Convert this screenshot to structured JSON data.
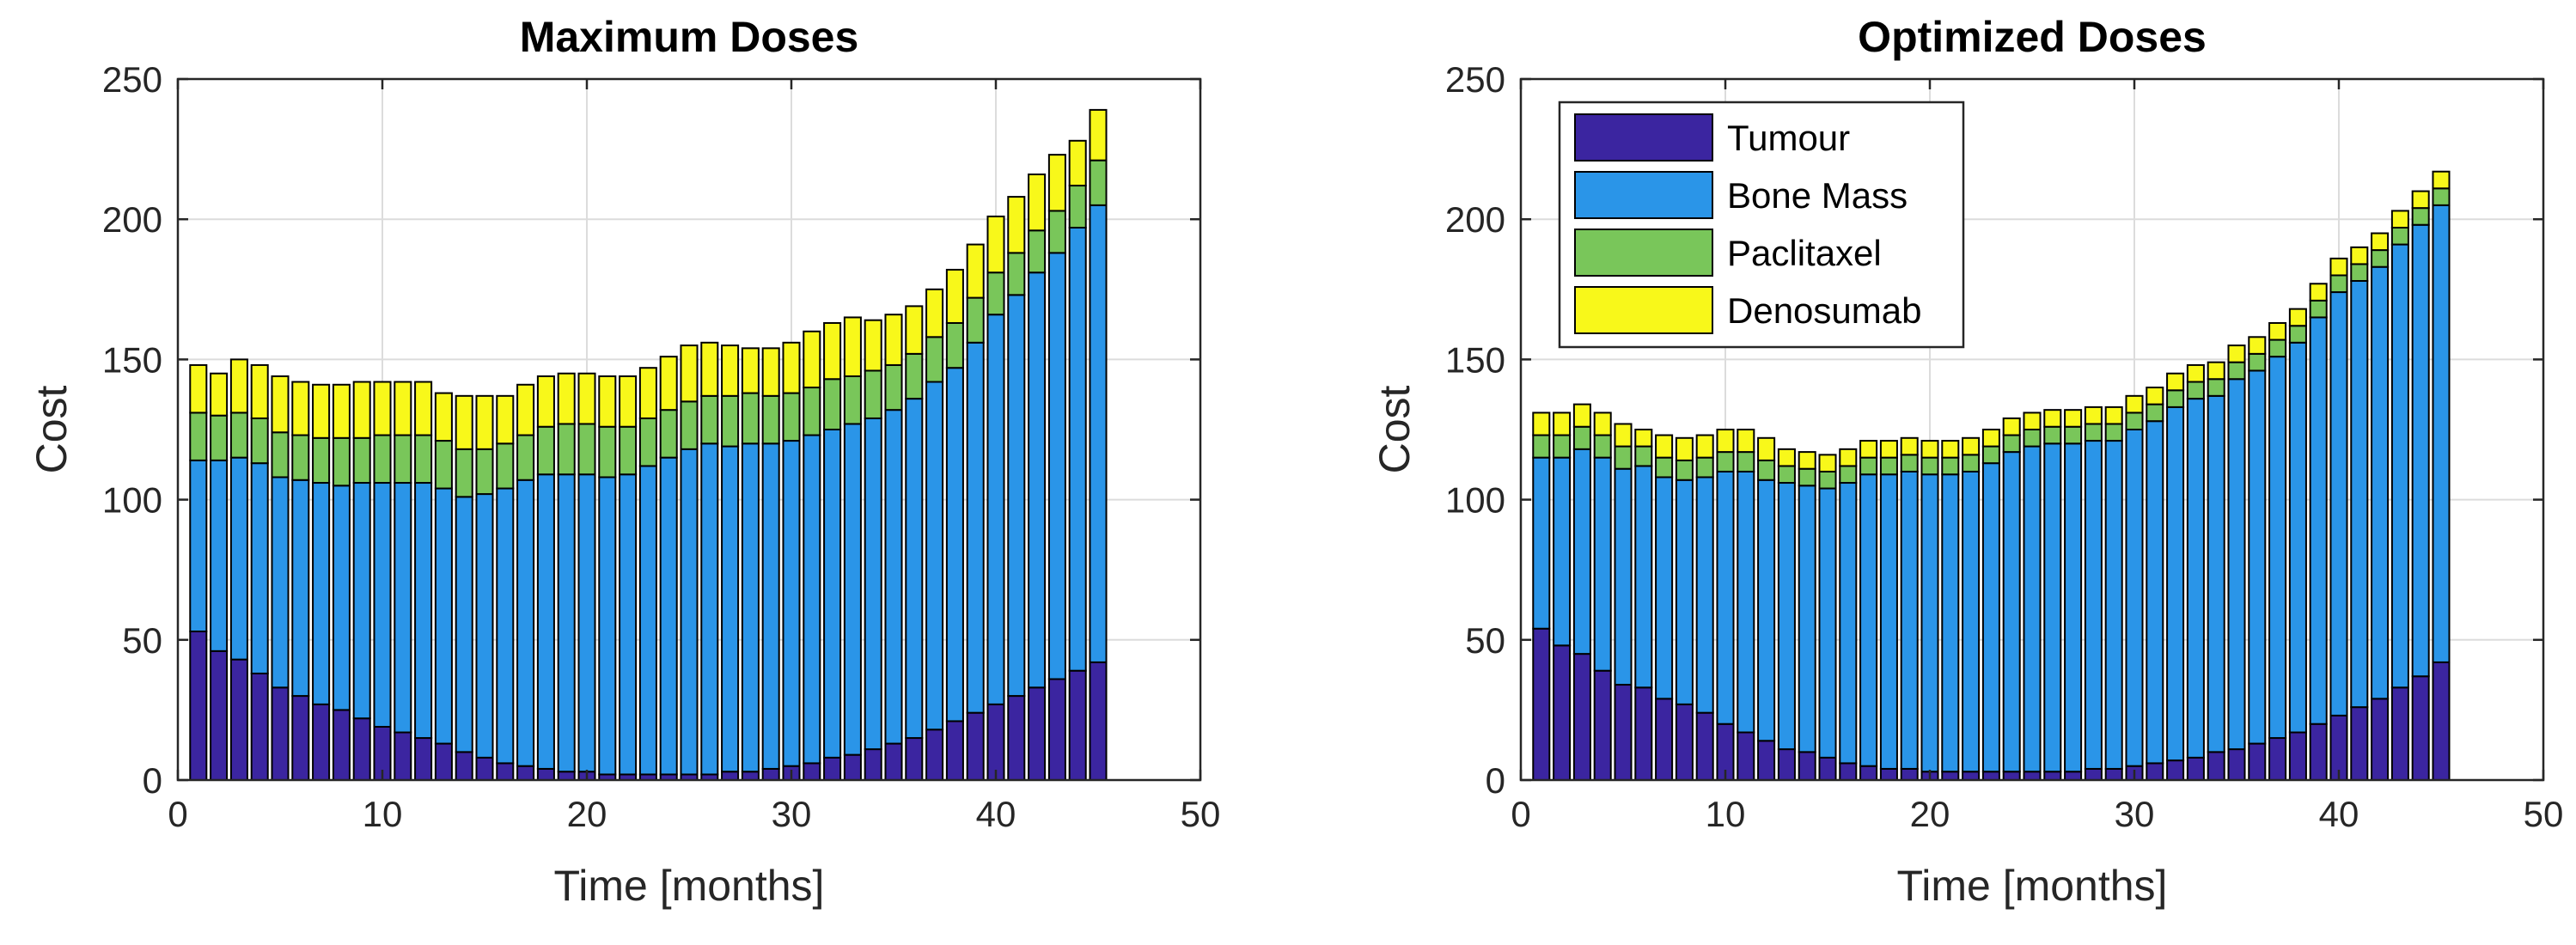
{
  "chart_data": [
    {
      "type": "bar",
      "stacked": true,
      "title": "Maximum Doses",
      "xlabel": "Time [months]",
      "ylabel": "Cost",
      "xlim": [
        0,
        50
      ],
      "ylim": [
        0,
        250
      ],
      "xticks": [
        0,
        10,
        20,
        30,
        40,
        50
      ],
      "yticks": [
        0,
        50,
        100,
        150,
        200,
        250
      ],
      "grid": true,
      "x": [
        1,
        2,
        3,
        4,
        5,
        6,
        7,
        8,
        9,
        10,
        11,
        12,
        13,
        14,
        15,
        16,
        17,
        18,
        19,
        20,
        21,
        22,
        23,
        24,
        25,
        26,
        27,
        28,
        29,
        30,
        31,
        32,
        33,
        34,
        35,
        36,
        37,
        38,
        39,
        40,
        41,
        42,
        43,
        44,
        45
      ],
      "series": [
        {
          "name": "Tumour",
          "color": "#3b25a0",
          "values": [
            53,
            46,
            43,
            38,
            33,
            30,
            27,
            25,
            22,
            19,
            17,
            15,
            13,
            10,
            8,
            6,
            5,
            4,
            3,
            3,
            2,
            2,
            2,
            2,
            2,
            2,
            3,
            3,
            4,
            5,
            6,
            8,
            9,
            11,
            13,
            15,
            18,
            21,
            24,
            27,
            30,
            33,
            36,
            39,
            42
          ]
        },
        {
          "name": "Bone Mass",
          "color": "#2a95e8",
          "values": [
            61,
            68,
            72,
            75,
            75,
            77,
            79,
            80,
            84,
            87,
            89,
            91,
            91,
            91,
            94,
            98,
            102,
            105,
            106,
            106,
            106,
            107,
            110,
            113,
            116,
            118,
            116,
            117,
            116,
            116,
            117,
            117,
            118,
            118,
            119,
            121,
            124,
            126,
            132,
            139,
            143,
            148,
            152,
            158,
            163
          ]
        },
        {
          "name": "Paclitaxel",
          "color": "#79c65a",
          "values": [
            17,
            16,
            16,
            16,
            16,
            16,
            16,
            17,
            16,
            17,
            17,
            17,
            17,
            17,
            16,
            16,
            16,
            17,
            18,
            18,
            18,
            17,
            17,
            17,
            17,
            17,
            18,
            18,
            17,
            17,
            17,
            18,
            17,
            17,
            16,
            16,
            16,
            16,
            16,
            15,
            15,
            15,
            15,
            15,
            16
          ]
        },
        {
          "name": "Denosumab",
          "color": "#f8f81a",
          "values": [
            17,
            15,
            19,
            19,
            20,
            19,
            19,
            19,
            20,
            19,
            19,
            19,
            17,
            19,
            19,
            17,
            18,
            18,
            18,
            18,
            18,
            18,
            18,
            19,
            20,
            19,
            18,
            16,
            17,
            18,
            20,
            20,
            21,
            18,
            18,
            17,
            17,
            19,
            19,
            20,
            20,
            20,
            20,
            16,
            18
          ]
        }
      ]
    },
    {
      "type": "bar",
      "stacked": true,
      "title": "Optimized Doses",
      "xlabel": "Time [months]",
      "ylabel": "Cost",
      "xlim": [
        0,
        50
      ],
      "ylim": [
        0,
        250
      ],
      "xticks": [
        0,
        10,
        20,
        30,
        40,
        50
      ],
      "yticks": [
        0,
        50,
        100,
        150,
        200,
        250
      ],
      "grid": true,
      "legend": {
        "position": "top-left",
        "entries": [
          "Tumour",
          "Bone Mass",
          "Paclitaxel",
          "Denosumab"
        ]
      },
      "x": [
        1,
        2,
        3,
        4,
        5,
        6,
        7,
        8,
        9,
        10,
        11,
        12,
        13,
        14,
        15,
        16,
        17,
        18,
        19,
        20,
        21,
        22,
        23,
        24,
        25,
        26,
        27,
        28,
        29,
        30,
        31,
        32,
        33,
        34,
        35,
        36,
        37,
        38,
        39,
        40,
        41,
        42,
        43,
        44,
        45
      ],
      "series": [
        {
          "name": "Tumour",
          "color": "#3b25a0",
          "values": [
            54,
            48,
            45,
            39,
            34,
            33,
            29,
            27,
            24,
            20,
            17,
            14,
            11,
            10,
            8,
            6,
            5,
            4,
            4,
            3,
            3,
            3,
            3,
            3,
            3,
            3,
            3,
            4,
            4,
            5,
            6,
            7,
            8,
            10,
            11,
            13,
            15,
            17,
            20,
            23,
            26,
            29,
            33,
            37,
            42
          ]
        },
        {
          "name": "Bone Mass",
          "color": "#2a95e8",
          "values": [
            61,
            67,
            73,
            76,
            77,
            79,
            79,
            80,
            84,
            90,
            93,
            93,
            95,
            95,
            96,
            100,
            104,
            105,
            106,
            106,
            106,
            107,
            110,
            114,
            116,
            117,
            117,
            117,
            117,
            120,
            122,
            126,
            128,
            127,
            132,
            133,
            136,
            139,
            145,
            151,
            152,
            154,
            158,
            161,
            163
          ]
        },
        {
          "name": "Paclitaxel",
          "color": "#79c65a",
          "values": [
            8,
            8,
            8,
            8,
            8,
            7,
            7,
            7,
            7,
            7,
            7,
            7,
            6,
            6,
            6,
            6,
            6,
            6,
            6,
            6,
            6,
            6,
            6,
            6,
            6,
            6,
            6,
            6,
            6,
            6,
            6,
            6,
            6,
            6,
            6,
            6,
            6,
            6,
            6,
            6,
            6,
            6,
            6,
            6,
            6
          ]
        },
        {
          "name": "Denosumab",
          "color": "#f8f81a",
          "values": [
            8,
            8,
            8,
            8,
            8,
            6,
            8,
            8,
            8,
            8,
            8,
            8,
            6,
            6,
            6,
            6,
            6,
            6,
            6,
            6,
            6,
            6,
            6,
            6,
            6,
            6,
            6,
            6,
            6,
            6,
            6,
            6,
            6,
            6,
            6,
            6,
            6,
            6,
            6,
            6,
            6,
            6,
            6,
            6,
            6
          ]
        }
      ]
    }
  ]
}
